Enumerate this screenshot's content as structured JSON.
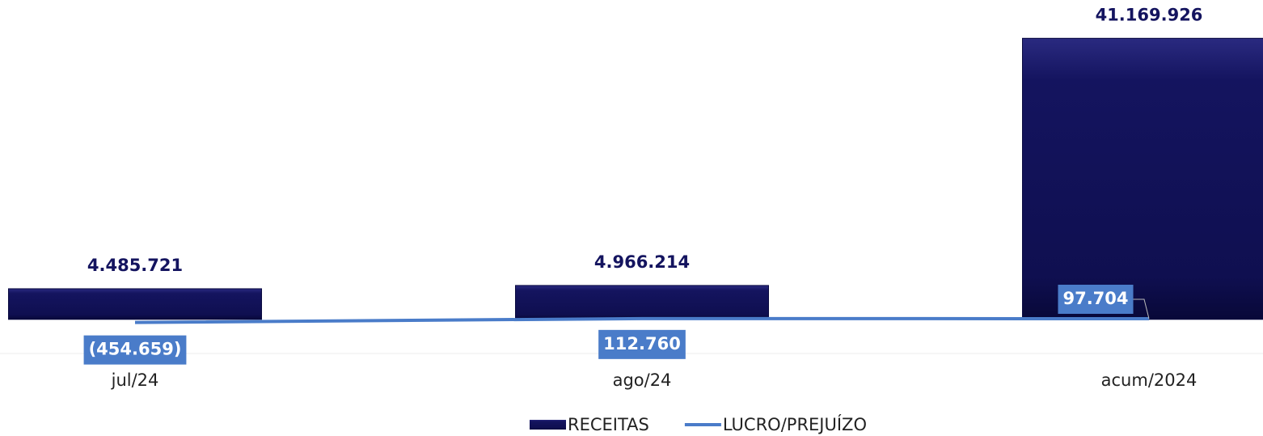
{
  "chart_data": {
    "type": "bar-line",
    "categories": [
      "jul/24",
      "ago/24",
      "acum/2024"
    ],
    "series": [
      {
        "name": "RECEITAS",
        "type": "bar",
        "color": "#14145f",
        "values": [
          4485721,
          4966214,
          41169926
        ],
        "value_labels": [
          "4.485.721",
          "4.966.214",
          "41.169.926"
        ]
      },
      {
        "name": "LUCRO/PREJUÍZO",
        "type": "line",
        "color": "#4a7cc9",
        "values": [
          -454659,
          112760,
          97704
        ],
        "value_labels": [
          "(454.659)",
          "112.760",
          "97.704"
        ]
      }
    ],
    "ylim": [
      -5000000,
      45000000
    ],
    "legend": "bottom"
  }
}
